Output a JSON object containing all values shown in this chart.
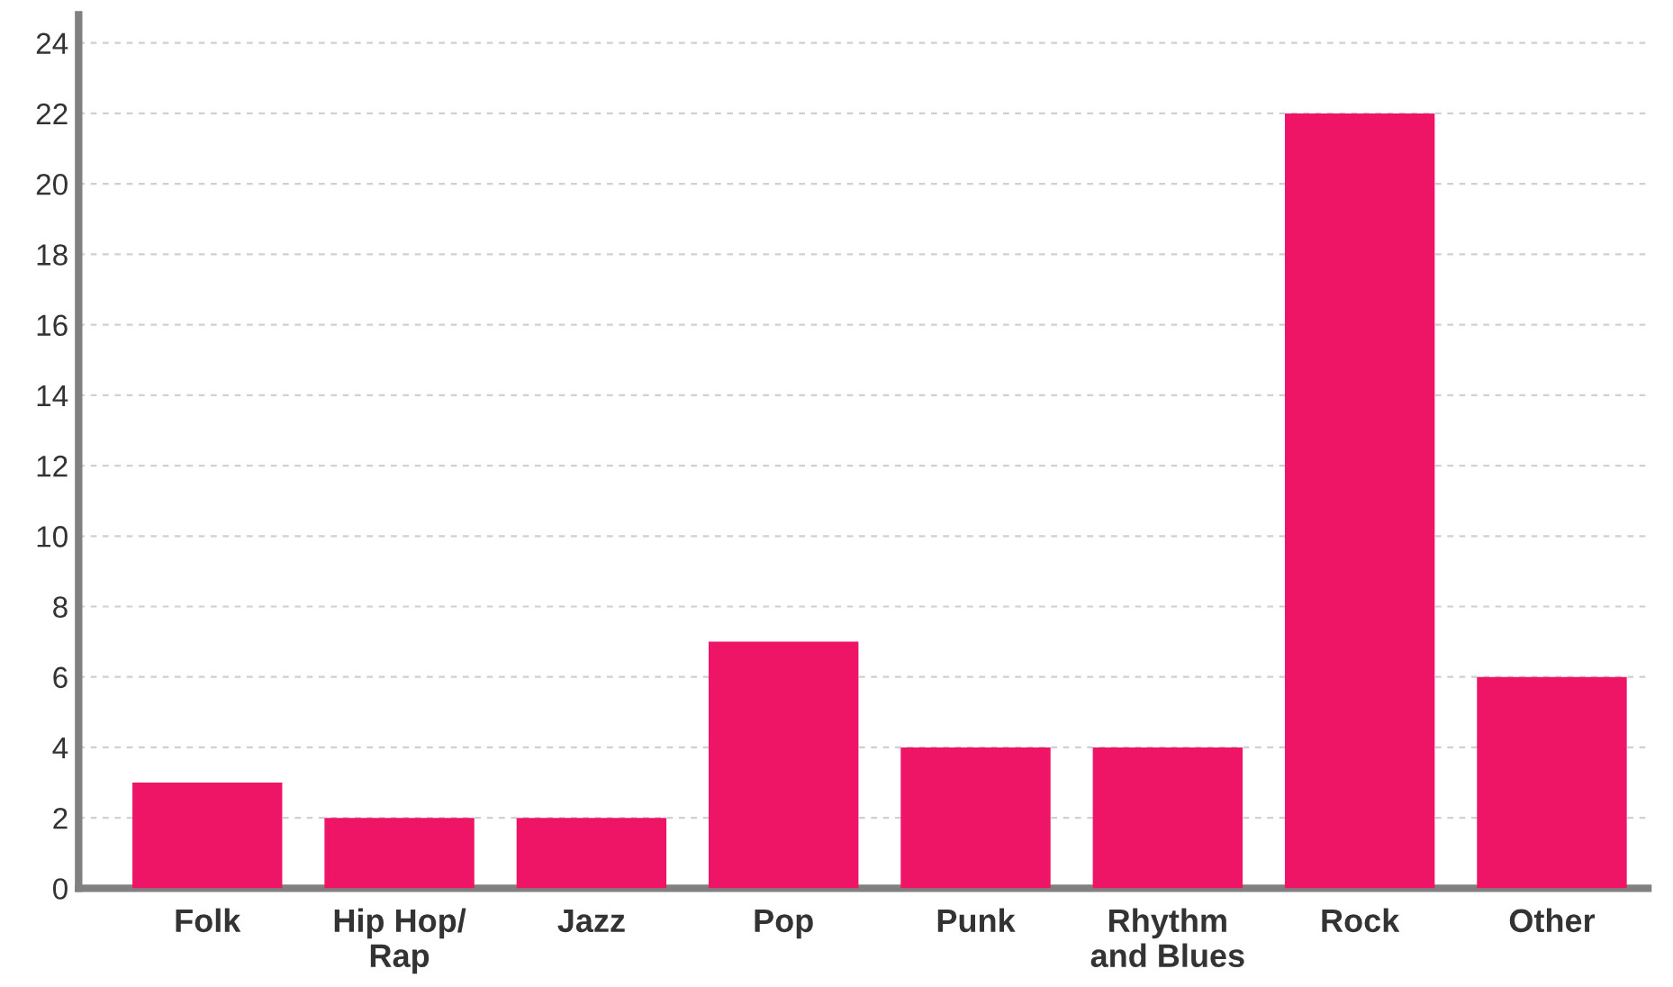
{
  "chart_data": {
    "type": "bar",
    "categories": [
      "Folk",
      "Hip Hop/\nRap",
      "Jazz",
      "Pop",
      "Punk",
      "Rhythm\nand Blues",
      "Rock",
      "Other"
    ],
    "values": [
      3,
      2,
      2,
      7,
      4,
      4,
      22,
      6
    ],
    "color": "#ee1566",
    "ylim": [
      0,
      24.8
    ],
    "yticks": [
      0,
      2,
      4,
      6,
      8,
      10,
      12,
      14,
      16,
      18,
      20,
      22,
      24
    ],
    "grid": "y",
    "legend": false
  }
}
